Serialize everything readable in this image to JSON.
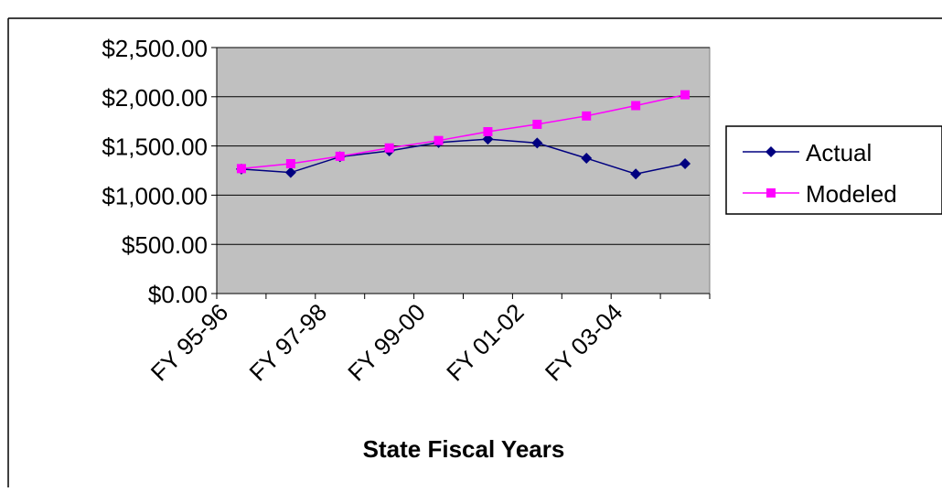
{
  "chart_data": {
    "type": "line",
    "title": "",
    "xlabel": "State Fiscal Years",
    "ylabel": "",
    "ylim": [
      0,
      2500
    ],
    "ytick_step": 500,
    "ytick_labels": [
      "$0.00",
      "$500.00",
      "$1,000.00",
      "$1,500.00",
      "$2,000.00",
      "$2,500.00"
    ],
    "xtick_labels": [
      "FY 95-96",
      "FY 97-98",
      "FY 99-00",
      "FY 01-02",
      "FY 03-04"
    ],
    "categories": [
      "FY 95-96",
      "FY 96-97",
      "FY 97-98",
      "FY 98-99",
      "FY 99-00",
      "FY 00-01",
      "FY 01-02",
      "FY 02-03",
      "FY 03-04",
      "FY 04-05"
    ],
    "grid": "horizontal",
    "plot_background": "#c0c0c0",
    "legend_position": "right",
    "series": [
      {
        "name": "Actual",
        "color": "#000080",
        "marker": "diamond",
        "values": [
          1265,
          1230,
          1390,
          1450,
          1535,
          1570,
          1530,
          1375,
          1215,
          1320
        ]
      },
      {
        "name": "Modeled",
        "color": "#ff00ff",
        "marker": "square",
        "values": [
          1270,
          1320,
          1395,
          1480,
          1555,
          1645,
          1720,
          1805,
          1910,
          2020
        ]
      }
    ]
  }
}
